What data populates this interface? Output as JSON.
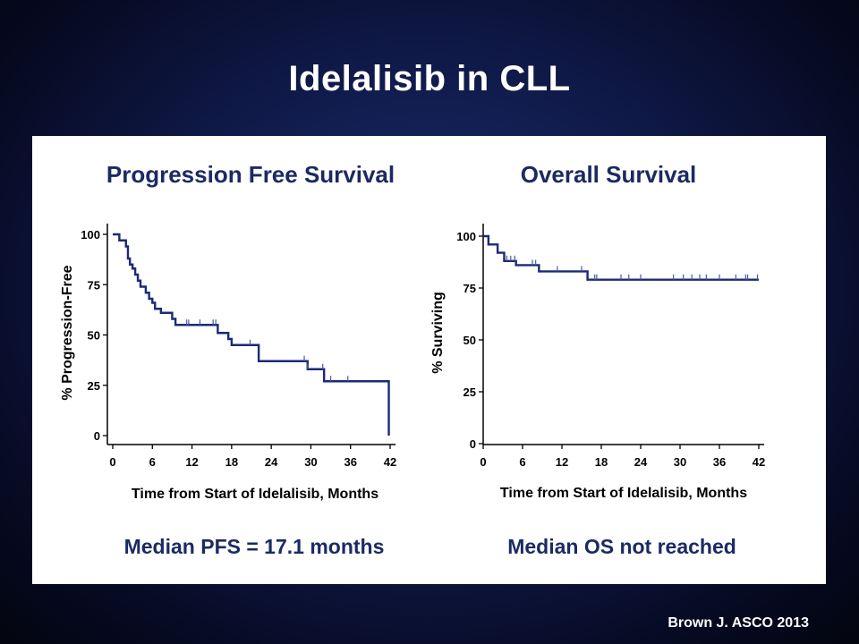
{
  "slide": {
    "title": "Idelalisib in CLL",
    "credit": "Brown J. ASCO 2013"
  },
  "colors": {
    "curve": "#1a2a78",
    "censor": "#4a5aa0",
    "axis": "#000000",
    "heading": "#1b2a63"
  },
  "chart_data": [
    {
      "type": "line",
      "title": "Progression Free Survival",
      "xlabel": "Time from Start of Idelalisib, Months",
      "ylabel": "% Progression-Free",
      "caption": "Median PFS = 17.1 months",
      "xticks": [
        0,
        6,
        12,
        18,
        24,
        30,
        36,
        42
      ],
      "yticks": [
        0,
        25,
        50,
        75,
        100
      ],
      "xlim": [
        0,
        42
      ],
      "ylim": [
        0,
        100
      ],
      "grid": false,
      "step_curve": [
        [
          0,
          100
        ],
        [
          1,
          97
        ],
        [
          2,
          94
        ],
        [
          2.3,
          88
        ],
        [
          2.6,
          85
        ],
        [
          3.0,
          83
        ],
        [
          3.4,
          80
        ],
        [
          3.8,
          77
        ],
        [
          4.2,
          74
        ],
        [
          5.0,
          71
        ],
        [
          5.5,
          68
        ],
        [
          6.0,
          66
        ],
        [
          6.4,
          63
        ],
        [
          7.3,
          61
        ],
        [
          9.0,
          58
        ],
        [
          9.5,
          55
        ],
        [
          15.9,
          51
        ],
        [
          17.5,
          48
        ],
        [
          18.0,
          45
        ],
        [
          22.1,
          37
        ],
        [
          29.5,
          33
        ],
        [
          32.0,
          27
        ],
        [
          41.8,
          0
        ]
      ],
      "censor_times": [
        11.2,
        11.5,
        13.2,
        15.2,
        15.6,
        20.8,
        29.0,
        29.5,
        31.8,
        33.0,
        35.6
      ],
      "series": [
        {
          "values": [
            100,
            66,
            55,
            45,
            37,
            33,
            27,
            0
          ]
        }
      ]
    },
    {
      "type": "line",
      "title": "Overall Survival",
      "xlabel": "Time from Start of Idelalisib, Months",
      "ylabel": "% Surviving",
      "caption": "Median OS not reached",
      "xticks": [
        0,
        6,
        12,
        18,
        24,
        30,
        36,
        42
      ],
      "yticks": [
        0,
        25,
        50,
        75,
        100
      ],
      "xlim": [
        0,
        42
      ],
      "ylim": [
        0,
        100
      ],
      "grid": false,
      "step_curve": [
        [
          0,
          100
        ],
        [
          0.8,
          96
        ],
        [
          2.2,
          92
        ],
        [
          3.2,
          88
        ],
        [
          5.0,
          86
        ],
        [
          8.5,
          83
        ],
        [
          15.9,
          79
        ],
        [
          42,
          79
        ]
      ],
      "censor_times": [
        3.6,
        4.2,
        4.8,
        7.5,
        8.0,
        11.3,
        15.0,
        17.0,
        17.3,
        21.0,
        22.2,
        24.0,
        29.0,
        30.5,
        31.8,
        33.0,
        34.0,
        36.0,
        38.5,
        40.0,
        40.3,
        41.8
      ],
      "series": [
        {
          "values": [
            100,
            86,
            83,
            79,
            79,
            79,
            79,
            79
          ]
        }
      ]
    }
  ]
}
